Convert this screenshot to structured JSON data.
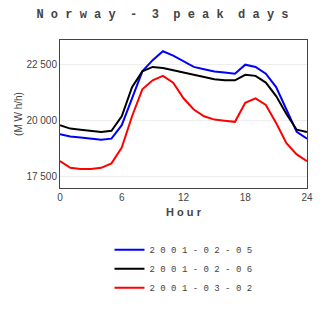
{
  "chart_data": {
    "type": "line",
    "title": "N o r w a y  -  3  p e a k  d a y s",
    "xlabel": "H o u r",
    "ylabel": "(M W h/h)",
    "x": [
      0,
      1,
      2,
      3,
      4,
      5,
      6,
      7,
      8,
      9,
      10,
      11,
      12,
      13,
      14,
      15,
      16,
      17,
      18,
      19,
      20,
      21,
      22,
      23,
      24
    ],
    "series": [
      {
        "name": "2 0 0 1 - 0 2 - 0 5",
        "color": "blue",
        "values": [
          19400,
          19300,
          19250,
          19200,
          19150,
          19200,
          19800,
          21000,
          22200,
          22700,
          23100,
          22900,
          22650,
          22400,
          22300,
          22200,
          22150,
          22100,
          22500,
          22400,
          22100,
          21500,
          20500,
          19500,
          19200
        ]
      },
      {
        "name": "2 0 0 1 - 0 2 - 0 6",
        "color": "black",
        "values": [
          19800,
          19650,
          19600,
          19550,
          19500,
          19550,
          20200,
          21500,
          22200,
          22400,
          22350,
          22250,
          22150,
          22050,
          21950,
          21850,
          21800,
          21800,
          22050,
          22000,
          21700,
          21100,
          20300,
          19600,
          19500
        ]
      },
      {
        "name": "2 0 0 1 - 0 3 - 0 2",
        "color": "red",
        "values": [
          18200,
          17900,
          17850,
          17850,
          17900,
          18100,
          18800,
          20200,
          21400,
          21800,
          22000,
          21700,
          21000,
          20500,
          20200,
          20050,
          20000,
          19950,
          20800,
          21000,
          20700,
          19900,
          19000,
          18500,
          18200
        ]
      }
    ],
    "xlim": [
      0,
      24
    ],
    "xticks": [
      0,
      6,
      12,
      18,
      24
    ],
    "ylim": [
      17000,
      23600
    ],
    "yticks": [
      {
        "value": 17500,
        "label": "17 500"
      },
      {
        "value": 20000,
        "label": "20 000"
      },
      {
        "value": 22500,
        "label": "22 500"
      }
    ],
    "grid": "y",
    "legend": "bottom"
  }
}
